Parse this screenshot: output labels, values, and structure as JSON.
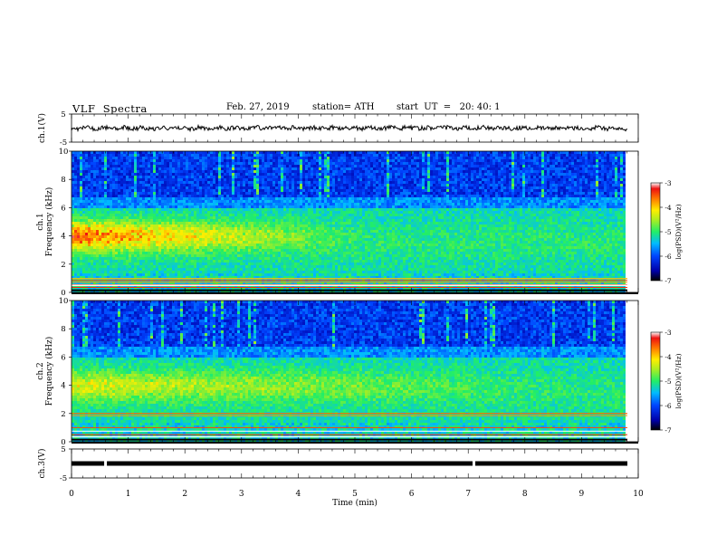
{
  "header": {
    "title": "VLF  Spectra",
    "date": "Feb. 27, 2019",
    "station": "station= ATH",
    "start": "start  UT  =   20: 40: 1"
  },
  "chart_data": [
    {
      "type": "line",
      "panel": "ch1",
      "ylabel": "ch.1(V)",
      "ylim": [
        -5,
        5
      ],
      "yticks": [
        "5",
        "-5"
      ],
      "description_values": {
        "mean": 0.0
      }
    },
    {
      "type": "heatmap",
      "panel": "ch1-spectrogram",
      "ylabel": "ch.1\nFrequency (kHz)",
      "ylim": [
        0,
        10
      ],
      "yticks": [
        "0",
        "2",
        "4",
        "6",
        "8",
        "10"
      ],
      "colorbar": {
        "label": "log(PSD)(V²/Hz)",
        "range": [
          -7,
          -3
        ],
        "ticks": [
          "-3",
          "-4",
          "-5",
          "-6",
          "-7"
        ]
      }
    },
    {
      "type": "heatmap",
      "panel": "ch2-spectrogram",
      "ylabel": "ch.2\nFrequency (kHz)",
      "ylim": [
        0,
        10
      ],
      "yticks": [
        "0",
        "2",
        "4",
        "6",
        "8",
        "10"
      ],
      "colorbar": {
        "label": "log(PSD)(V²/Hz)",
        "range": [
          -7,
          -3
        ],
        "ticks": [
          "-3",
          "-4",
          "-5",
          "-6",
          "-7"
        ]
      }
    },
    {
      "type": "line",
      "panel": "ch3",
      "ylabel": "ch.3(V)",
      "ylim": [
        -5,
        5
      ],
      "yticks": [
        "5",
        "-5"
      ],
      "description_values": {
        "mean": 0.0
      }
    }
  ],
  "xaxis": {
    "label": "Time  (min)",
    "range": [
      0,
      10
    ],
    "ticks": [
      "0",
      "1",
      "2",
      "3",
      "4",
      "5",
      "6",
      "7",
      "8",
      "9",
      "10"
    ]
  },
  "labels": {
    "ch1_volt": "ch.1(V)",
    "ch1_chan": "ch.1",
    "ch1_freq": "Frequency (kHz)",
    "ch2_chan": "ch.2",
    "ch2_freq": "Frequency (kHz)",
    "ch3_volt": "ch.3(V)",
    "cb_label": "log(PSD)(V²/Hz)"
  }
}
